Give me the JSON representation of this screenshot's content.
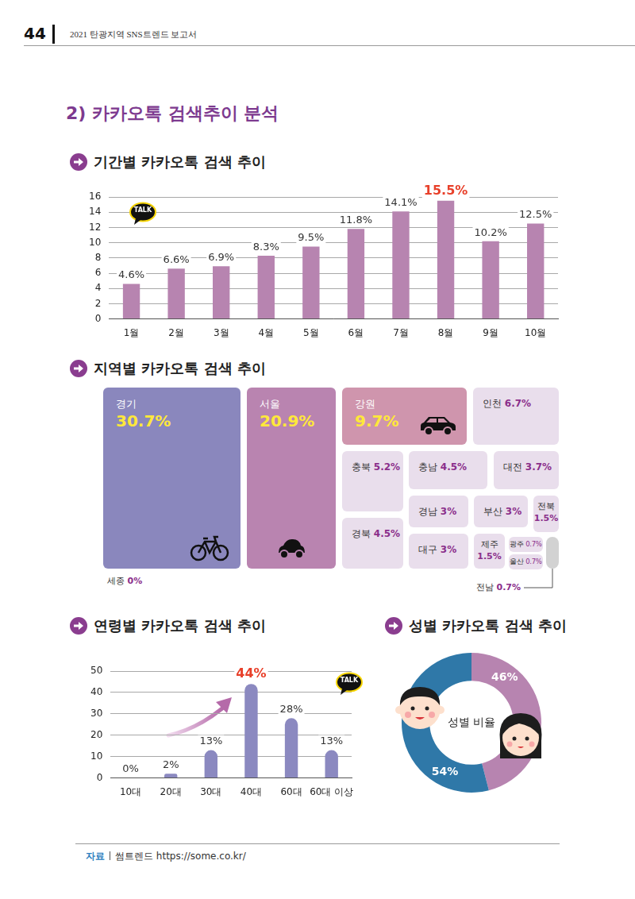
{
  "header": {
    "page": "44",
    "text": "2021 탄광지역 SNS트렌드 보고서"
  },
  "section_title": "2) 카카오톡 검색추이 분석",
  "badge": "TALK",
  "chart_data": [
    {
      "type": "bar",
      "title": "기간별 카카오톡 검색 추이",
      "categories": [
        "1월",
        "2월",
        "3월",
        "4월",
        "5월",
        "6월",
        "7월",
        "8월",
        "9월",
        "10월"
      ],
      "values": [
        4.6,
        6.6,
        6.9,
        8.3,
        9.5,
        11.8,
        14.1,
        15.5,
        10.2,
        12.5
      ],
      "value_labels": [
        "4.6%",
        "6.6%",
        "6.9%",
        "8.3%",
        "9.5%",
        "11.8%",
        "14.1%",
        "15.5%",
        "10.2%",
        "12.5%"
      ],
      "color": "#b784b0",
      "ylim": [
        0,
        16
      ],
      "yticks": [
        0,
        2,
        4,
        6,
        8,
        10,
        12,
        14,
        16
      ],
      "grid": true,
      "data_labels": true
    },
    {
      "type": "treemap",
      "title": "지역별 카카오톡 검색 추이",
      "categories": [
        "경기",
        "서울",
        "강원",
        "인천",
        "충북",
        "충남",
        "대전",
        "경북",
        "경남",
        "부산",
        "전북",
        "대구",
        "제주",
        "광주",
        "울산",
        "전남",
        "세종"
      ],
      "values": [
        30.7,
        20.9,
        9.7,
        6.7,
        5.2,
        4.5,
        3.7,
        4.5,
        3,
        3,
        1.5,
        3,
        1.5,
        0.7,
        0.7,
        0.7,
        0
      ],
      "value_labels": [
        "30.7%",
        "20.9%",
        "9.7%",
        "6.7%",
        "5.2%",
        "4.5%",
        "3.7%",
        "4.5%",
        "3%",
        "3%",
        "1.5%",
        "3%",
        "1.5%",
        "0.7%",
        "0.7%",
        "0.7%",
        "0%"
      ],
      "colors": [
        "#8a87bd",
        "#b984b0",
        "#cf95ad",
        "#e9deec",
        "#e9deec",
        "#e9deec",
        "#e9deec",
        "#e9deec",
        "#e9deec",
        "#e9deec",
        "#e9deec",
        "#e9deec",
        "#e9deec",
        "#e9deec",
        "#e9deec",
        "#d2d2d2",
        null
      ],
      "data_labels": true
    },
    {
      "type": "bar",
      "title": "연령별 카카오톡 검색 추이",
      "categories": [
        "10대",
        "20대",
        "30대",
        "40대",
        "60대",
        "60대 이상"
      ],
      "values": [
        0,
        2,
        13,
        44,
        28,
        13
      ],
      "value_labels": [
        "0%",
        "2%",
        "13%",
        "44%",
        "28%",
        "13%"
      ],
      "color": "#8b89c0",
      "ylim": [
        0,
        50
      ],
      "yticks": [
        0,
        10,
        20,
        30,
        40,
        50
      ],
      "grid": true,
      "data_labels": true
    },
    {
      "type": "doughnut",
      "title": "성별 카카오톡 검색 추이",
      "center_label": "성별 비율",
      "values": [
        46,
        54
      ],
      "value_labels": [
        "46%",
        "54%"
      ],
      "colors": [
        "#b784b0",
        "#2f78a8"
      ],
      "data_labels": true
    }
  ],
  "source": {
    "label": "자료",
    "text": "썸트렌드 https://some.co.kr/"
  }
}
